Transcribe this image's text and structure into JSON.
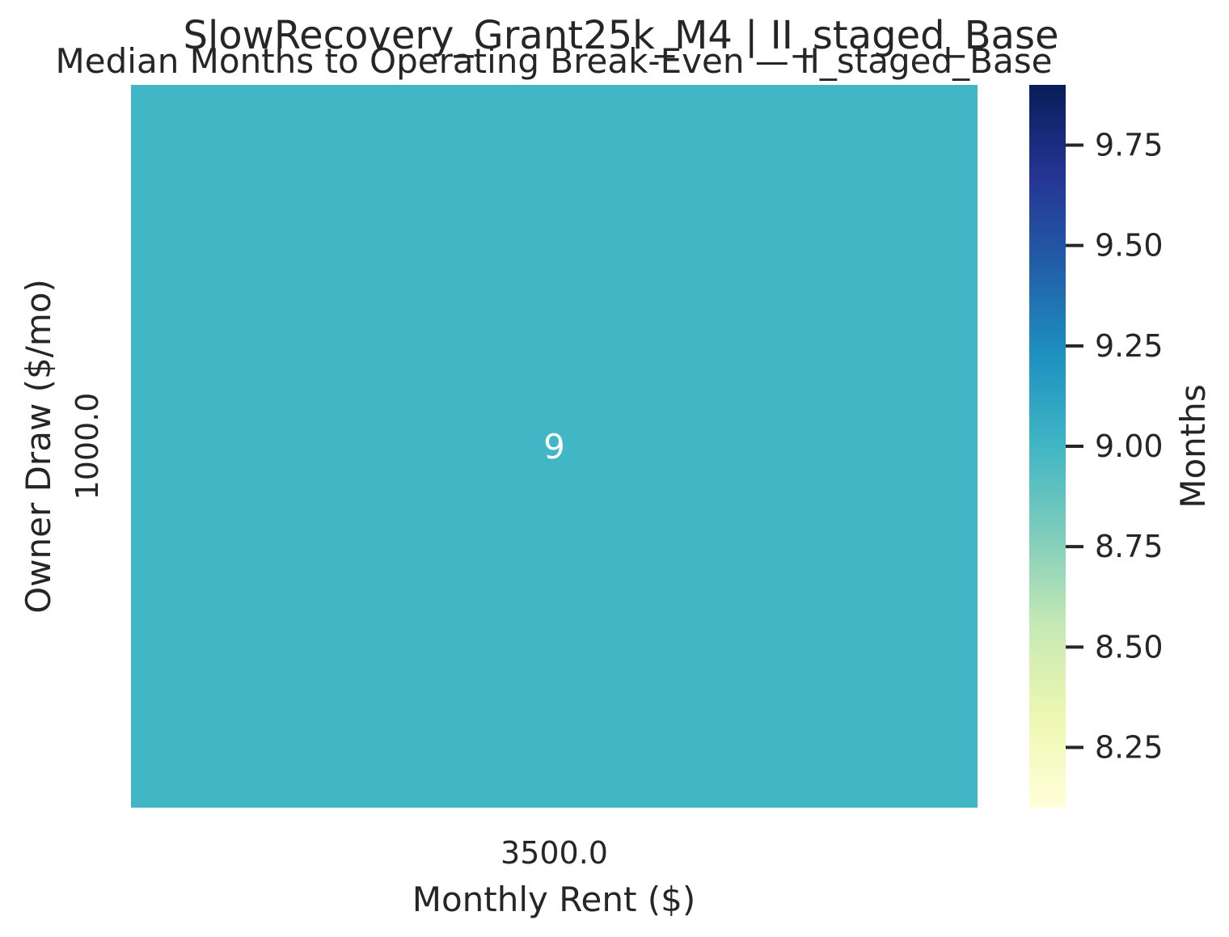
{
  "chart_data": {
    "type": "heatmap",
    "suptitle": "SlowRecovery_Grant25k_M4 | II_staged_Base",
    "title": "Median Months to Operating Break-Even — II_staged_Base",
    "xlabel": "Monthly Rent ($)",
    "ylabel": "Owner Draw ($/mo)",
    "x_categories": [
      "3500.0"
    ],
    "y_categories": [
      "1000.0"
    ],
    "values": [
      [
        9
      ]
    ],
    "annotations": [
      [
        "9"
      ]
    ],
    "colorbar": {
      "label": "Months",
      "colormap": "YlGnBu",
      "range": [
        8.1,
        9.9
      ],
      "ticks": [
        8.25,
        8.5,
        8.75,
        9.0,
        9.25,
        9.5,
        9.75
      ],
      "tick_labels": [
        "8.25",
        "8.50",
        "8.75",
        "9.00",
        "9.25",
        "9.50",
        "9.75"
      ]
    },
    "colors": {
      "cell": "#41b6c4",
      "annotation_text": "#ffffff",
      "cmap_stops": [
        "#ffffd9",
        "#edf8b1",
        "#c7e9b4",
        "#7fcdbb",
        "#41b6c4",
        "#1d91c0",
        "#225ea8",
        "#253494",
        "#081d58"
      ]
    },
    "grid": false,
    "legend": "colorbar-right"
  }
}
